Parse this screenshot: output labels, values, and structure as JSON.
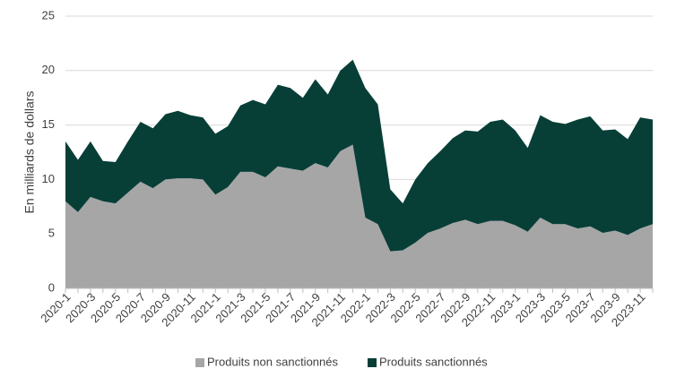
{
  "chart_data": {
    "type": "area",
    "stacked": true,
    "ylabel": "En milliards de dollars",
    "ylim": [
      0,
      25
    ],
    "yticks": [
      0,
      5,
      10,
      15,
      20,
      25
    ],
    "grid": "horizontal",
    "legend_position": "bottom",
    "x": [
      "2020-1",
      "2020-2",
      "2020-3",
      "2020-4",
      "2020-5",
      "2020-6",
      "2020-7",
      "2020-8",
      "2020-9",
      "2020-10",
      "2020-11",
      "2020-12",
      "2021-1",
      "2021-2",
      "2021-3",
      "2021-4",
      "2021-5",
      "2021-6",
      "2021-7",
      "2021-8",
      "2021-9",
      "2021-10",
      "2021-11",
      "2021-12",
      "2022-1",
      "2022-2",
      "2022-3",
      "2022-4",
      "2022-5",
      "2022-6",
      "2022-7",
      "2022-8",
      "2022-9",
      "2022-10",
      "2022-11",
      "2022-12",
      "2023-1",
      "2023-2",
      "2023-3",
      "2023-4",
      "2023-5",
      "2023-6",
      "2023-7",
      "2023-8",
      "2023-9",
      "2023-10",
      "2023-11",
      "2023-12"
    ],
    "xtick_labels": [
      "2020-1",
      "2020-3",
      "2020-5",
      "2020-7",
      "2020-9",
      "2020-11",
      "2021-1",
      "2021-3",
      "2021-5",
      "2021-7",
      "2021-9",
      "2021-11",
      "2022-1",
      "2022-3",
      "2022-5",
      "2022-7",
      "2022-9",
      "2022-11",
      "2023-1",
      "2023-3",
      "2023-5",
      "2023-7",
      "2023-9",
      "2023-11"
    ],
    "series": [
      {
        "name": "Produits non sanctionnés",
        "color": "#a6a6a6",
        "values": [
          8.0,
          7.0,
          8.4,
          8.0,
          7.8,
          8.8,
          9.8,
          9.2,
          10.0,
          10.1,
          10.1,
          10.0,
          8.6,
          9.3,
          10.7,
          10.7,
          10.2,
          11.2,
          11.0,
          10.8,
          11.5,
          11.1,
          12.6,
          13.2,
          6.5,
          5.9,
          3.4,
          3.5,
          4.2,
          5.1,
          5.5,
          6.0,
          6.3,
          5.9,
          6.2,
          6.2,
          5.8,
          5.2,
          6.5,
          5.9,
          5.9,
          5.5,
          5.7,
          5.1,
          5.3,
          4.9,
          5.5,
          5.9
        ]
      },
      {
        "name": "Produits sanctionnés",
        "color": "#073f37",
        "values": [
          5.5,
          4.8,
          5.1,
          3.7,
          3.8,
          4.7,
          5.5,
          5.5,
          6.0,
          6.2,
          5.8,
          5.7,
          5.6,
          5.6,
          6.1,
          6.6,
          6.7,
          7.5,
          7.4,
          6.7,
          7.7,
          6.7,
          7.4,
          7.8,
          11.9,
          11.0,
          5.7,
          4.3,
          5.8,
          6.4,
          7.1,
          7.8,
          8.2,
          8.5,
          9.1,
          9.3,
          8.7,
          7.7,
          9.4,
          9.4,
          9.2,
          10.0,
          10.1,
          9.4,
          9.3,
          8.8,
          10.2,
          9.6
        ]
      }
    ]
  }
}
